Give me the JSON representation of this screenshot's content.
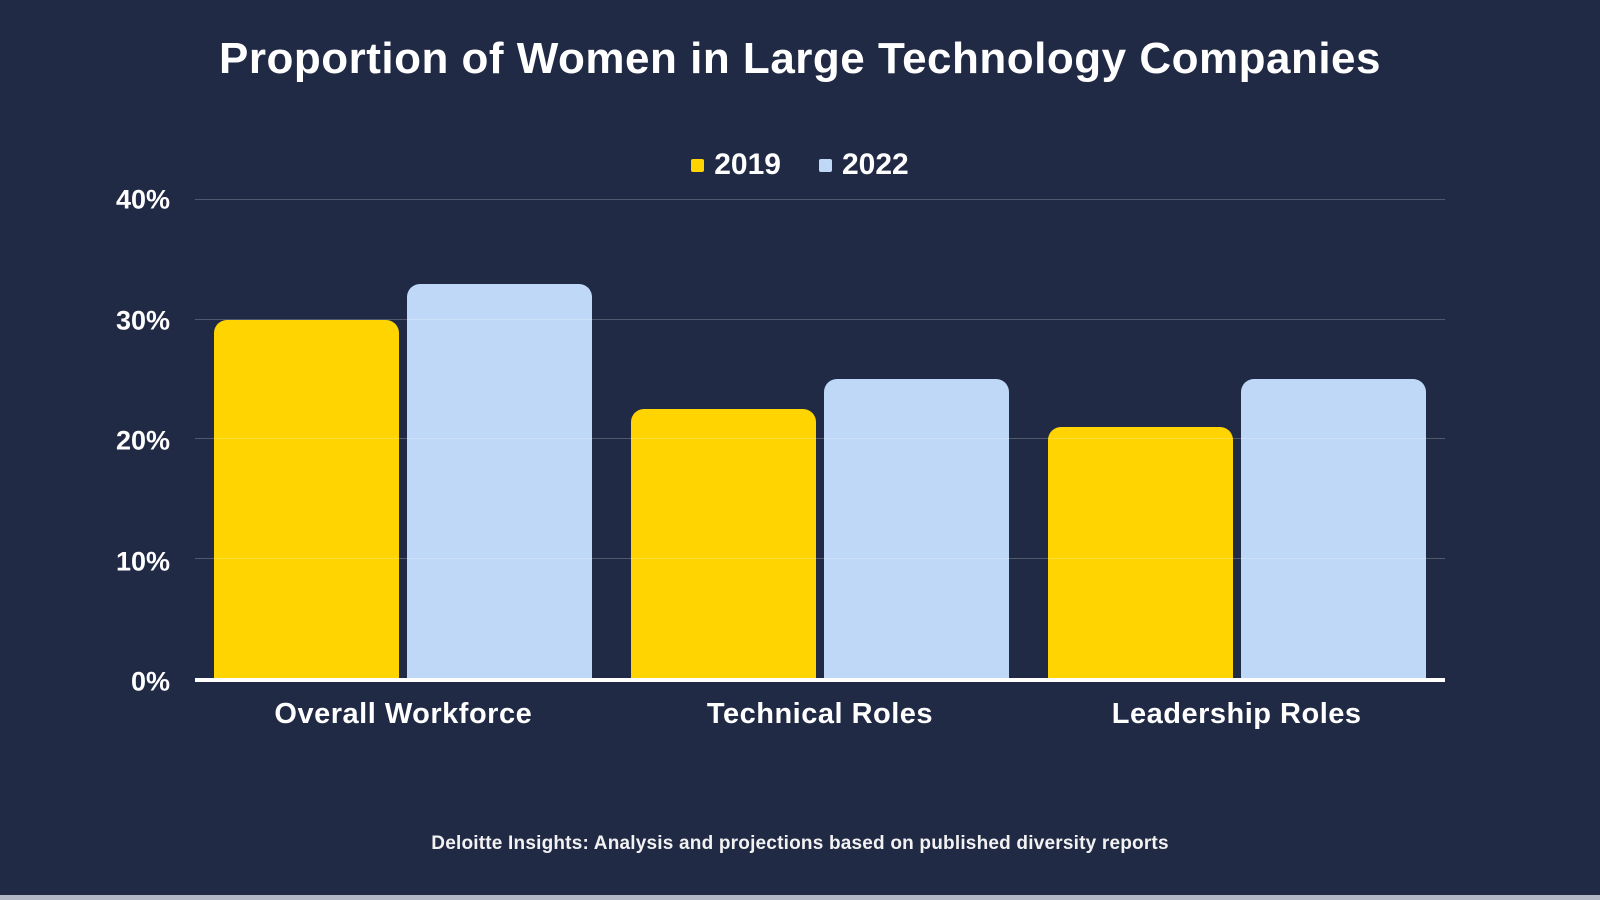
{
  "page": {
    "title": "Proportion of Women in Large Technology Companies",
    "footer": "Deloitte Insights: Analysis and projections based on published diversity reports"
  },
  "legend": [
    {
      "label": "2019",
      "color": "#ffd400"
    },
    {
      "label": "2022",
      "color": "#bfd8f8"
    }
  ],
  "chart_data": {
    "type": "bar",
    "title": "Proportion of Women in Large Technology Companies",
    "categories": [
      "Overall Workforce",
      "Technical Roles",
      "Leadership Roles"
    ],
    "series": [
      {
        "name": "2019",
        "color": "#ffd400",
        "values": [
          30,
          22.5,
          21
        ]
      },
      {
        "name": "2022",
        "color": "#bfd8f8",
        "values": [
          33,
          25,
          25
        ]
      }
    ],
    "xlabel": "",
    "ylabel": "",
    "ylim": [
      0,
      40
    ],
    "y_ticks": [
      "0%",
      "10%",
      "20%",
      "30%",
      "40%"
    ],
    "grid": true,
    "legend_position": "top-center",
    "source_note": "Deloitte Insights: Analysis and projections based on published diversity reports"
  },
  "colors": {
    "background": "#212a45",
    "text": "#ffffff",
    "gridline": "rgba(255,255,255,0.22)",
    "axis_line": "#ffffff",
    "series_2019": "#ffd400",
    "series_2022": "#bfd8f8"
  }
}
